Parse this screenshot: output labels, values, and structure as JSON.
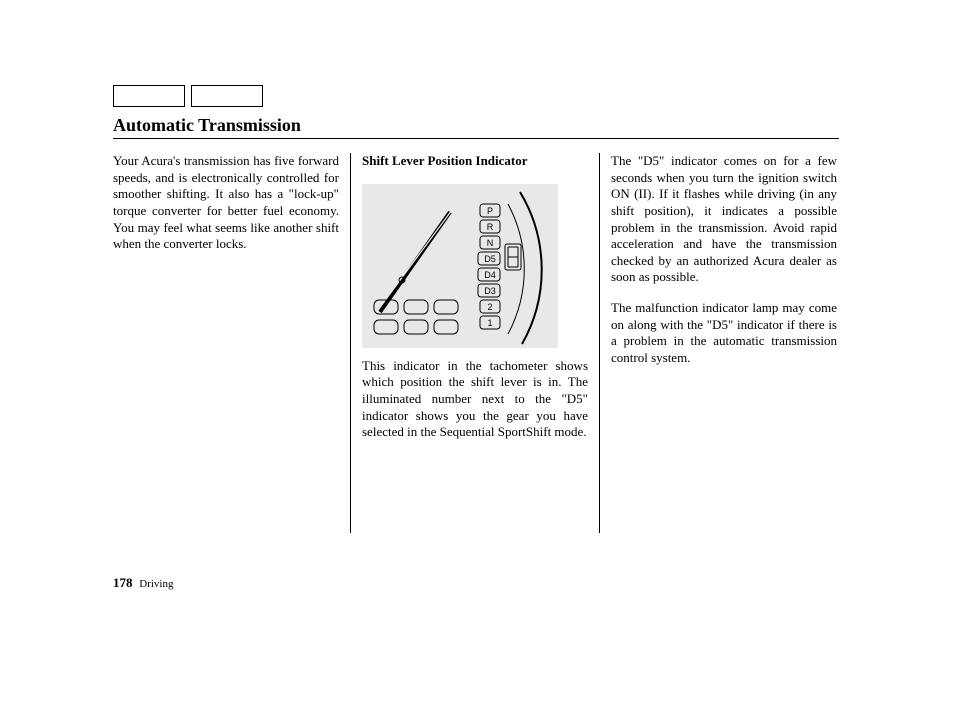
{
  "title": "Automatic Transmission",
  "col1": {
    "p1": "Your Acura's transmission has five forward speeds, and is electronically controlled for smoother shifting. It also has a \"lock-up\" torque converter for better fuel economy. You may feel what seems like another shift when the converter locks."
  },
  "col2": {
    "subhead": "Shift Lever Position Indicator",
    "p1": "This indicator in the tachometer shows which position the shift lever is in. The illuminated number next to the \"D5\" indicator shows you the gear you have selected in the Sequential SportShift mode."
  },
  "col3": {
    "p1": "The \"D5\" indicator comes on for a few seconds when you turn the ignition switch ON (II). If it flashes while driving (in any shift position), it indicates a possible problem in the transmission. Avoid rapid acceleration and have the transmission checked by an authorized Acura dealer as soon as possible.",
    "p2": "The malfunction indicator lamp may come on along with the \"D5\" indicator if there is a problem in the automatic transmission control system."
  },
  "figure": {
    "gear_labels": [
      "P",
      "R",
      "N",
      "D5",
      "D4",
      "D3",
      "2",
      "1"
    ],
    "background_color": "#e8e8e8",
    "outline_color": "#000000",
    "label_box_fill": "#e8e8e8",
    "needle_color": "#000000",
    "seven_seg_color": "#000000"
  },
  "footer": {
    "page_number": "178",
    "section": "Driving"
  },
  "colors": {
    "text": "#000000",
    "background": "#ffffff",
    "figure_bg": "#e8e8e8"
  },
  "typography": {
    "title_fontsize": 18,
    "body_fontsize": 13,
    "footer_fontsize": 11,
    "font_family": "Times New Roman"
  }
}
